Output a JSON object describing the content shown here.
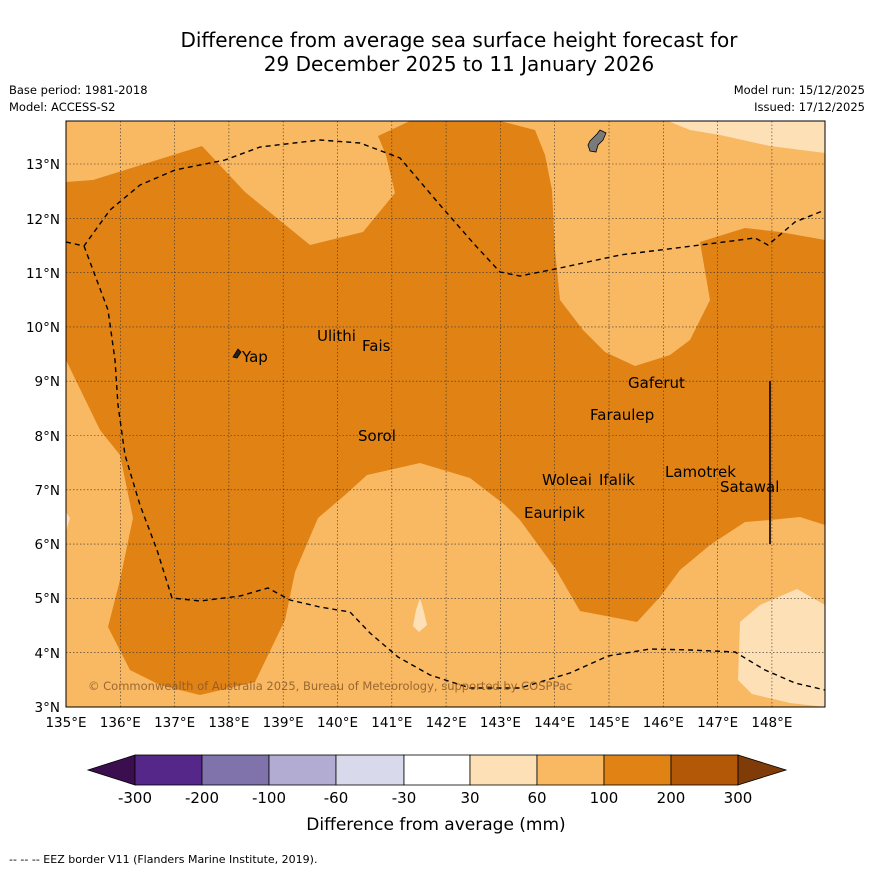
{
  "title_line1": "Difference from average sea surface height forecast for",
  "title_line2": "29 December 2025 to 11 January 2026",
  "base_period": "Base period: 1981-2018",
  "model": "Model: ACCESS-S2",
  "model_run": "Model run: 15/12/2025",
  "issued": "Issued: 17/12/2025",
  "copyright": "© Commonwealth of Australia 2025, Bureau of Meteorology, supported by COSPPac",
  "footer": "--  --  -- EEZ border V11 (Flanders Marine Institute, 2019).",
  "map": {
    "lon_range": [
      135,
      149
    ],
    "lat_range": [
      3,
      13.8
    ],
    "lon_ticks": [
      "135°E",
      "136°E",
      "137°E",
      "138°E",
      "139°E",
      "140°E",
      "141°E",
      "142°E",
      "143°E",
      "144°E",
      "145°E",
      "146°E",
      "147°E",
      "148°E"
    ],
    "lat_ticks": [
      "3°N",
      "4°N",
      "5°N",
      "6°N",
      "7°N",
      "8°N",
      "9°N",
      "10°N",
      "11°N",
      "12°N",
      "13°N"
    ],
    "places": [
      {
        "name": "Yap",
        "lon": 138.1,
        "lat": 9.5
      },
      {
        "name": "Ulithi",
        "lon": 139.6,
        "lat": 9.9
      },
      {
        "name": "Fais",
        "lon": 140.5,
        "lat": 9.7
      },
      {
        "name": "Sorol",
        "lon": 140.4,
        "lat": 8.1
      },
      {
        "name": "Gaferut",
        "lon": 145.3,
        "lat": 9.1
      },
      {
        "name": "Faraulep",
        "lon": 144.6,
        "lat": 8.5
      },
      {
        "name": "Woleai",
        "lon": 143.9,
        "lat": 7.3
      },
      {
        "name": "Ifalik",
        "lon": 144.5,
        "lat": 7.3
      },
      {
        "name": "Lamotrek",
        "lon": 146.0,
        "lat": 7.4
      },
      {
        "name": "Satawal",
        "lon": 147.0,
        "lat": 7.1
      },
      {
        "name": "Eauripik",
        "lon": 143.3,
        "lat": 6.6
      }
    ]
  },
  "legend": {
    "title": "Difference from average (mm)",
    "tick_labels": [
      "-300",
      "-200",
      "-100",
      "-60",
      "-30",
      "30",
      "60",
      "100",
      "200",
      "300"
    ],
    "colors": {
      "below_-300": "#3b0f4f",
      "-300_-200": "#542788",
      "-200_-100": "#8073ac",
      "-100_-60": "#b2abd2",
      "-60_-30": "#d8daeb",
      "-30_30": "#ffffff",
      "30_60": "#fee0b6",
      "60_100": "#f9b862",
      "100_200": "#e08214",
      "200_300": "#b35806",
      "above_300": "#7f3b08"
    }
  }
}
